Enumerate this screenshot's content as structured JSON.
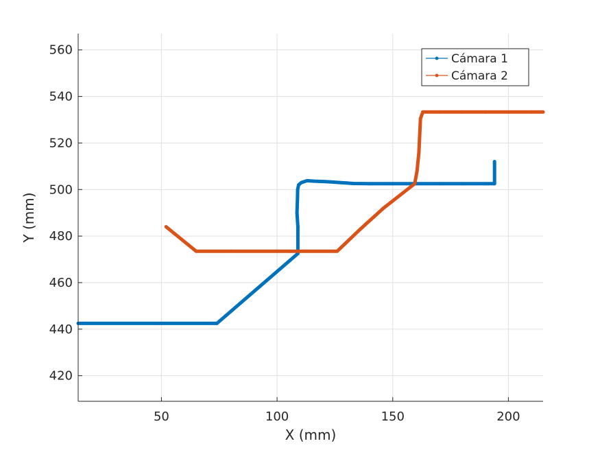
{
  "chart_data": {
    "type": "line",
    "title": "",
    "xlabel": "X (mm)",
    "ylabel": "Y (mm)",
    "xlim": [
      14,
      215
    ],
    "ylim": [
      409,
      567
    ],
    "xticks": [
      50,
      100,
      150,
      200
    ],
    "yticks": [
      420,
      440,
      460,
      480,
      500,
      520,
      540,
      560
    ],
    "grid": true,
    "legend_position": "top-right",
    "series": [
      {
        "name": "Cámara 1",
        "color": "#0072BD",
        "marker": "dot",
        "x": [
          14,
          74,
          109,
          109,
          108.6,
          108.8,
          108.9,
          109.3,
          110.5,
          113,
          116,
          121,
          124,
          127,
          130,
          133,
          140,
          150,
          160,
          170,
          180,
          190,
          194,
          194
        ],
        "y": [
          442.5,
          442.5,
          472.5,
          484,
          490,
          496,
          500,
          502,
          503,
          503.8,
          503.6,
          503.4,
          503.2,
          503,
          502.8,
          502.6,
          502.5,
          502.5,
          502.5,
          502.5,
          502.5,
          502.5,
          502.5,
          512
        ]
      },
      {
        "name": "Cámara 2",
        "color": "#D95319",
        "marker": "dot",
        "x": [
          52,
          65,
          80,
          100,
          126,
          136,
          146,
          159.5,
          160.5,
          161.3,
          162,
          163,
          170,
          180,
          190,
          200,
          210,
          215
        ],
        "y": [
          484,
          473.5,
          473.5,
          473.5,
          473.5,
          483,
          492,
          502.5,
          508,
          516,
          530.5,
          533.3,
          533.3,
          533.3,
          533.3,
          533.3,
          533.3,
          533.3
        ]
      }
    ]
  }
}
